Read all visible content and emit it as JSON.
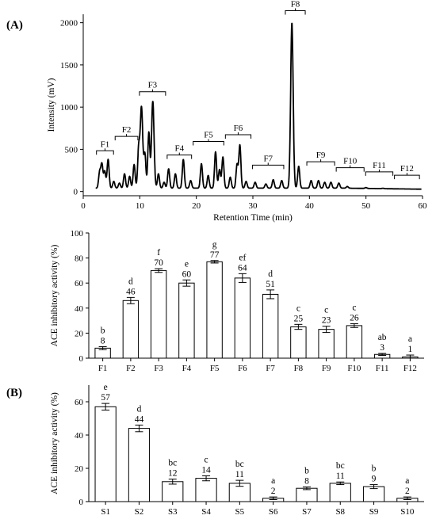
{
  "chart_data": [
    {
      "type": "line",
      "panel_label": "(A)",
      "xlabel": "Retention Time (min)",
      "ylabel": "Intensity (mV)",
      "xlim": [
        0,
        60
      ],
      "ylim": [
        -50,
        2100
      ],
      "xticks": [
        "0",
        "10",
        "20",
        "30",
        "40",
        "50",
        "60"
      ],
      "yticks": [
        "0",
        "500",
        "1000",
        "1500",
        "2000"
      ],
      "baseline": 40,
      "peaks": [
        {
          "x": 2.9,
          "y": 230
        },
        {
          "x": 3.3,
          "y": 320
        },
        {
          "x": 3.8,
          "y": 240
        },
        {
          "x": 4.4,
          "y": 380
        },
        {
          "x": 5.4,
          "y": 120
        },
        {
          "x": 6.4,
          "y": 100
        },
        {
          "x": 7.3,
          "y": 210
        },
        {
          "x": 8.2,
          "y": 180
        },
        {
          "x": 9.0,
          "y": 320
        },
        {
          "x": 9.8,
          "y": 500
        },
        {
          "x": 10.3,
          "y": 1000
        },
        {
          "x": 10.9,
          "y": 440
        },
        {
          "x": 11.6,
          "y": 700
        },
        {
          "x": 12.3,
          "y": 1070
        },
        {
          "x": 13.3,
          "y": 210
        },
        {
          "x": 14.3,
          "y": 110
        },
        {
          "x": 15.1,
          "y": 270
        },
        {
          "x": 16.3,
          "y": 210
        },
        {
          "x": 17.7,
          "y": 380
        },
        {
          "x": 19.0,
          "y": 130
        },
        {
          "x": 20.9,
          "y": 330
        },
        {
          "x": 22.1,
          "y": 190
        },
        {
          "x": 23.4,
          "y": 470
        },
        {
          "x": 24.1,
          "y": 260
        },
        {
          "x": 24.7,
          "y": 410
        },
        {
          "x": 26.0,
          "y": 170
        },
        {
          "x": 27.2,
          "y": 320
        },
        {
          "x": 27.7,
          "y": 550
        },
        {
          "x": 28.8,
          "y": 120
        },
        {
          "x": 30.4,
          "y": 110
        },
        {
          "x": 32.3,
          "y": 90
        },
        {
          "x": 33.6,
          "y": 140
        },
        {
          "x": 35.1,
          "y": 130
        },
        {
          "x": 36.9,
          "y": 2000
        },
        {
          "x": 38.1,
          "y": 300
        },
        {
          "x": 40.3,
          "y": 130
        },
        {
          "x": 41.6,
          "y": 130
        },
        {
          "x": 42.7,
          "y": 110
        },
        {
          "x": 43.8,
          "y": 110
        },
        {
          "x": 45.2,
          "y": 100
        },
        {
          "x": 46.7,
          "y": 60
        },
        {
          "x": 50.0,
          "y": 50
        },
        {
          "x": 53.0,
          "y": 45
        },
        {
          "x": 56.0,
          "y": 40
        }
      ],
      "fractions": [
        {
          "label": "F1",
          "x_start": 2.2,
          "x_end": 5.5,
          "y": 370
        },
        {
          "label": "F2",
          "x_start": 5.5,
          "x_end": 9.8,
          "y": 540
        },
        {
          "label": "F3",
          "x_start": 9.8,
          "x_end": 14.7,
          "y": 1070
        },
        {
          "label": "F4",
          "x_start": 14.7,
          "x_end": 19.3,
          "y": 320
        },
        {
          "label": "F5",
          "x_start": 19.3,
          "x_end": 25.0,
          "y": 480
        },
        {
          "label": "F6",
          "x_start": 25.0,
          "x_end": 29.8,
          "y": 560
        },
        {
          "label": "F7",
          "x_start": 29.8,
          "x_end": 35.6,
          "y": 200
        },
        {
          "label": "F8",
          "x_start": 35.6,
          "x_end": 39.4,
          "y": 2030
        },
        {
          "label": "F9",
          "x_start": 39.4,
          "x_end": 44.6,
          "y": 240
        },
        {
          "label": "F10",
          "x_start": 44.6,
          "x_end": 49.8,
          "y": 170
        },
        {
          "label": "F11",
          "x_start": 49.8,
          "x_end": 54.9,
          "y": 120
        },
        {
          "label": "F12",
          "x_start": 54.9,
          "x_end": 59.6,
          "y": 80
        }
      ]
    },
    {
      "type": "bar",
      "ylabel": "ACE inhibitory activity (%)",
      "ylim": [
        0,
        100
      ],
      "yticks": [
        "0",
        "20",
        "40",
        "60",
        "80",
        "100"
      ],
      "categories": [
        "F1",
        "F2",
        "F3",
        "F4",
        "F5",
        "F6",
        "F7",
        "F8",
        "F9",
        "F10",
        "F11",
        "F12"
      ],
      "values": [
        8,
        46,
        70,
        60,
        77,
        64,
        51,
        25,
        23,
        26,
        3,
        1
      ],
      "errors": [
        1.2,
        2.5,
        1.5,
        2.5,
        1.0,
        3.5,
        3.5,
        2.0,
        2.5,
        1.5,
        0.8,
        1.5
      ],
      "value_labels": [
        "8",
        "46",
        "70",
        "60",
        "77",
        "64",
        "51",
        "25",
        "23",
        "26",
        "3",
        "1"
      ],
      "letters": [
        "b",
        "d",
        "f",
        "e",
        "g",
        "ef",
        "d",
        "c",
        "c",
        "c",
        "ab",
        "a"
      ]
    },
    {
      "type": "bar",
      "panel_label": "(B)",
      "ylabel": "ACE inhibitory activity (%)",
      "ylim": [
        0,
        70
      ],
      "yticks": [
        "0",
        "20",
        "40",
        "60"
      ],
      "categories": [
        "S1",
        "S2",
        "S3",
        "S4",
        "S5",
        "S6",
        "S7",
        "S8",
        "S9",
        "S10"
      ],
      "values": [
        57,
        44,
        12,
        14,
        11,
        2,
        8,
        11,
        9,
        2
      ],
      "errors": [
        2.0,
        2.0,
        1.5,
        1.5,
        1.8,
        0.8,
        0.8,
        0.8,
        1.2,
        0.8
      ],
      "value_labels": [
        "57",
        "44",
        "12",
        "14",
        "11",
        "2",
        "8",
        "11",
        "9",
        "2"
      ],
      "letters": [
        "e",
        "d",
        "bc",
        "c",
        "bc",
        "a",
        "b",
        "bc",
        "b",
        "a"
      ]
    }
  ]
}
